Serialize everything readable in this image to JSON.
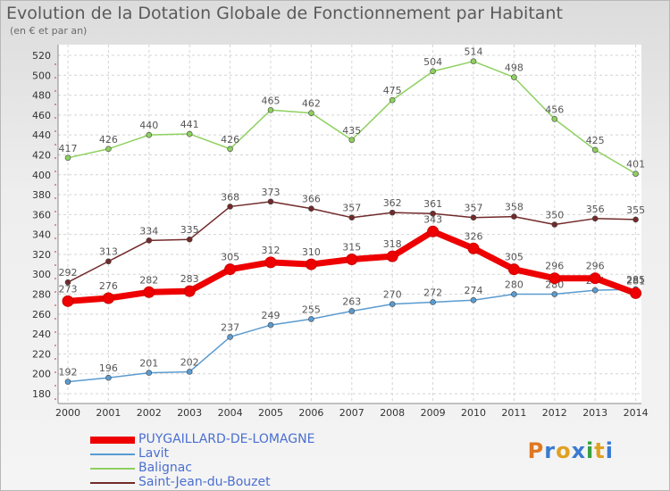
{
  "chart_data": {
    "type": "line",
    "title": "Evolution de la Dotation Globale de Fonctionnement par Habitant",
    "subtitle": "(en € et par an)",
    "x": [
      "2000",
      "2001",
      "2002",
      "2003",
      "2004",
      "2005",
      "2006",
      "2007",
      "2008",
      "2009",
      "2010",
      "2011",
      "2012",
      "2013",
      "2014"
    ],
    "ylim": [
      180,
      520
    ],
    "yticks": [
      180,
      200,
      220,
      240,
      260,
      280,
      300,
      320,
      340,
      360,
      380,
      400,
      420,
      440,
      460,
      480,
      500,
      520
    ],
    "grid": true,
    "legend_position": "bottom-left",
    "series": [
      {
        "name": "Saint-Jean-du-Bouzet",
        "color": "#722a2a",
        "values": [
          292,
          313,
          334,
          335,
          368,
          373,
          366,
          357,
          362,
          361,
          357,
          358,
          350,
          356,
          355
        ]
      },
      {
        "name": "Balignac",
        "color": "#8ed05e",
        "values": [
          417,
          426,
          440,
          441,
          426,
          465,
          462,
          435,
          475,
          504,
          514,
          498,
          456,
          425,
          401
        ]
      },
      {
        "name": "Lavit",
        "color": "#5a9bd0",
        "values": [
          192,
          196,
          201,
          202,
          237,
          249,
          255,
          263,
          270,
          272,
          274,
          280,
          280,
          284,
          285
        ]
      },
      {
        "name": "PUYGAILLARD-DE-LOMAGNE",
        "color": "#ee0000",
        "values": [
          273,
          276,
          282,
          283,
          305,
          312,
          310,
          315,
          318,
          343,
          326,
          305,
          296,
          296,
          281
        ]
      }
    ],
    "legend_order": [
      "PUYGAILLARD-DE-LOMAGNE",
      "Lavit",
      "Balignac",
      "Saint-Jean-du-Bouzet"
    ]
  },
  "watermark": {
    "letters": [
      "P",
      "r",
      "o",
      "x",
      "i",
      "t",
      "i"
    ],
    "colors": [
      "#e07820",
      "#3a7ad0",
      "#e0a020",
      "#3a7ad0",
      "#3aa040",
      "#e0a020",
      "#3a7ad0"
    ]
  }
}
